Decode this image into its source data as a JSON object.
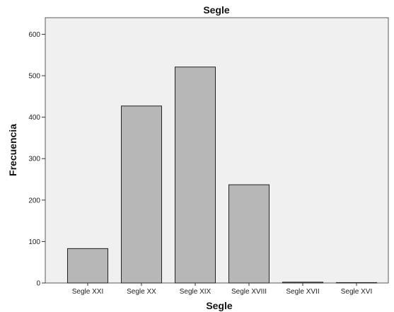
{
  "chart_data": {
    "type": "bar",
    "title": "Segle",
    "xlabel": "Segle",
    "ylabel": "Frecuencia",
    "categories": [
      "Segle XXI",
      "Segle XX",
      "Segle XIX",
      "Segle XVIII",
      "Segle XVII",
      "Segle XVI"
    ],
    "values": [
      83,
      427,
      521,
      237,
      2,
      1
    ],
    "ylim": [
      0,
      640
    ],
    "yticks": [
      0,
      100,
      200,
      300,
      400,
      500,
      600
    ],
    "grid": false,
    "colors": {
      "bar_fill": "#b7b7b7",
      "bar_stroke": "#222222",
      "plot_background": "#f0f0f0",
      "axis": "#333333"
    }
  }
}
